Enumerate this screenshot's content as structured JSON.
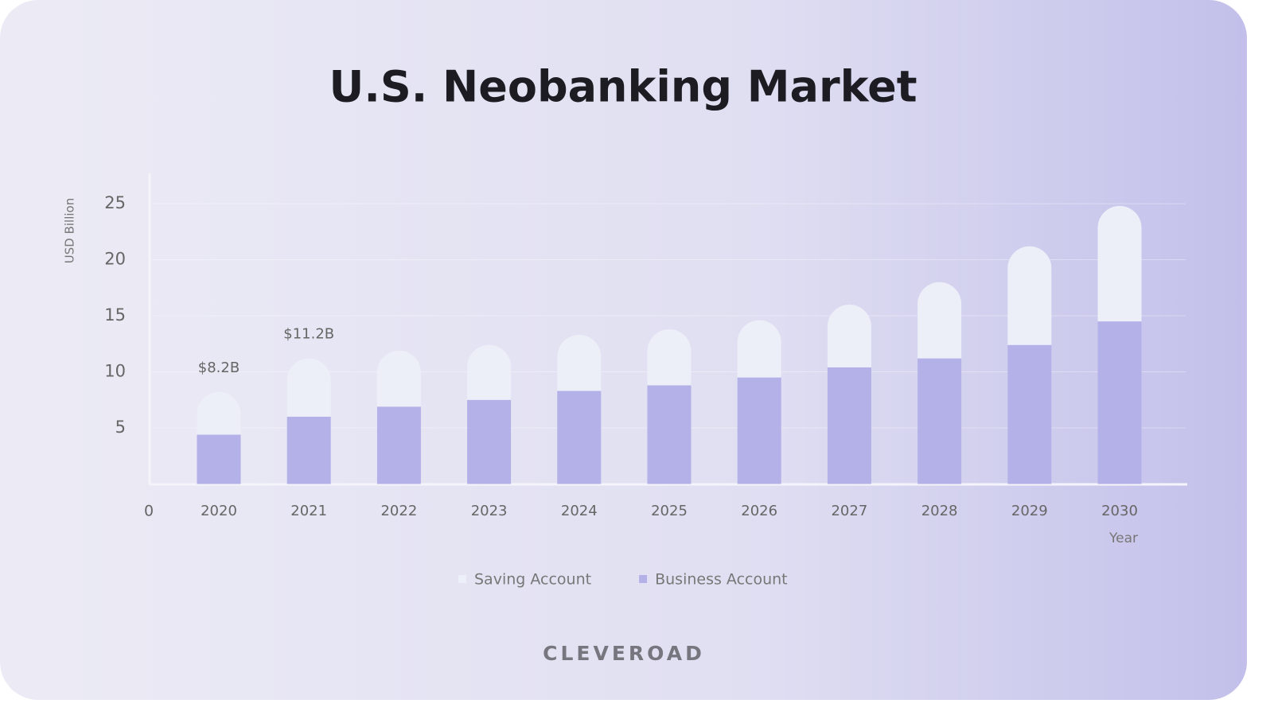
{
  "chart_data": {
    "type": "stacked_bar",
    "title": "U.S. Neobanking Market",
    "y_label": "USD Billion",
    "x_label": "Year",
    "categories": [
      "2020",
      "2021",
      "2022",
      "2023",
      "2024",
      "2025",
      "2026",
      "2027",
      "2028",
      "2029",
      "2030"
    ],
    "series": [
      {
        "name": "Business Account",
        "color": "#b3b1e8",
        "values": [
          4.4,
          6.0,
          6.9,
          7.5,
          8.3,
          8.8,
          9.5,
          10.4,
          11.2,
          12.4,
          14.5
        ]
      },
      {
        "name": "Saving Account",
        "color": "#eceef8",
        "values": [
          3.8,
          5.2,
          5.0,
          4.9,
          5.0,
          5.0,
          5.1,
          5.6,
          6.8,
          8.8,
          10.3
        ]
      }
    ],
    "annotations": [
      {
        "category": "2020",
        "value": 8.2,
        "label": "$8.2B"
      },
      {
        "category": "2021",
        "value": 11.2,
        "label": "$11.2B"
      }
    ],
    "ylim": [
      0,
      27.7
    ],
    "yticks": [
      0,
      5,
      10,
      15,
      20,
      25
    ],
    "grid": true,
    "legend": "bottom",
    "brand": "CLEVEROAD"
  }
}
